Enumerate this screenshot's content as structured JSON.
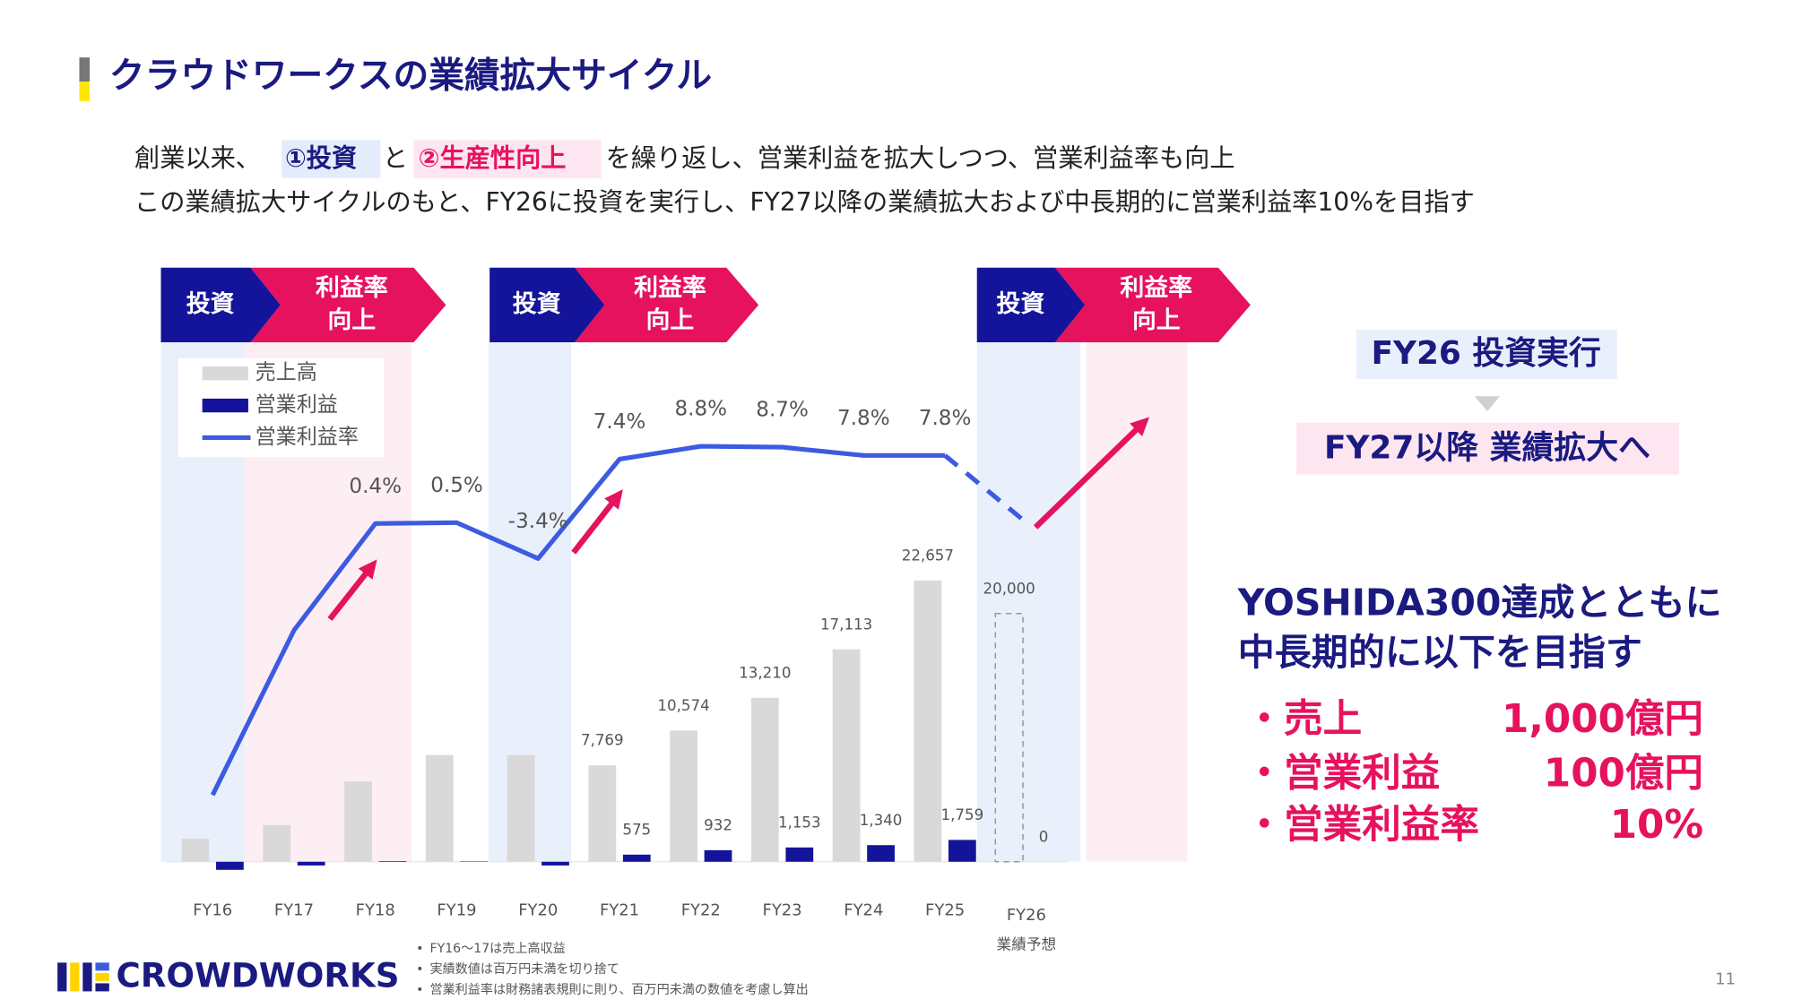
{
  "header": {
    "title": "クラウドワークスの業績拡大サイクル"
  },
  "intro": {
    "line1": [
      "創業以来、",
      "①投資",
      "と",
      "②生産性向上",
      "を繰り返し、営業利益を拡大しつつ、営業利益率も向上"
    ],
    "line2": "この業績拡大サイクルのもと、FY26に投資を実行し、FY27以降の業績拡大および中長期的に営業利益率10%を目指す"
  },
  "phases": [
    {
      "invest": "投資",
      "improve": [
        "利益率",
        "向上"
      ]
    },
    {
      "invest": "投資",
      "improve": [
        "利益率",
        "向上"
      ]
    },
    {
      "invest": "投資",
      "improve": [
        "利益率",
        "向上"
      ]
    }
  ],
  "chart_data": {
    "type": "bar",
    "categories": [
      "FY16",
      "FY17",
      "FY18",
      "FY19",
      "FY20",
      "FY21",
      "FY22",
      "FY23",
      "FY24",
      "FY25",
      "FY26"
    ],
    "forecast_index": 10,
    "forecast_label": "業績予想",
    "series": [
      {
        "name": "売上高",
        "color": "#d9d9d9",
        "values": [
          1850,
          2960,
          6470,
          8600,
          8600,
          7769,
          10574,
          13210,
          17113,
          22657,
          20000
        ],
        "value_labels": [
          null,
          null,
          null,
          null,
          null,
          "7,769",
          "10,574",
          "13,210",
          "17,113",
          "22,657",
          "20,000"
        ]
      },
      {
        "name": "営業利益",
        "color": "#14149a",
        "values": [
          -650,
          -300,
          50,
          30,
          -300,
          575,
          932,
          1153,
          1340,
          1759,
          0
        ],
        "value_labels": [
          null,
          null,
          null,
          null,
          null,
          "575",
          "932",
          "1,153",
          "1,340",
          "1,759",
          "0"
        ]
      },
      {
        "name": "営業利益率",
        "type": "line",
        "axis": "y2",
        "color": "#3c5be0",
        "values": [
          -29.1,
          -11.2,
          0.4,
          0.5,
          -3.4,
          7.4,
          8.8,
          8.7,
          7.8,
          7.8,
          0.5
        ],
        "value_labels": [
          null,
          null,
          "0.4%",
          "0.5%",
          "-3.4%",
          "7.4%",
          "8.8%",
          "8.7%",
          "7.8%",
          "7.8%",
          null
        ]
      }
    ],
    "ylim": [
      -1000,
      40000
    ],
    "y2lim": [
      -37.7,
      17.6
    ],
    "legend": "upper left"
  },
  "side": {
    "invest_box": "FY26 投資実行",
    "growth_box": "FY27以降 業績拡大へ",
    "goal_lines": [
      "YOSHIDA300達成とともに",
      "中長期的に以下を目指す"
    ],
    "targets": [
      {
        "label": "・売上",
        "value": "1,000億円"
      },
      {
        "label": "・営業利益",
        "value": "100億円"
      },
      {
        "label": "・営業利益率",
        "value": "10%"
      }
    ]
  },
  "notes": [
    "FY16〜17は売上高収益",
    "実績数値は百万円未満を切り捨て",
    "営業利益率は財務諸表規則に則り、百万円未満の数値を考慮し算出"
  ],
  "logo": "CROWDWORKS",
  "page_number": "11"
}
